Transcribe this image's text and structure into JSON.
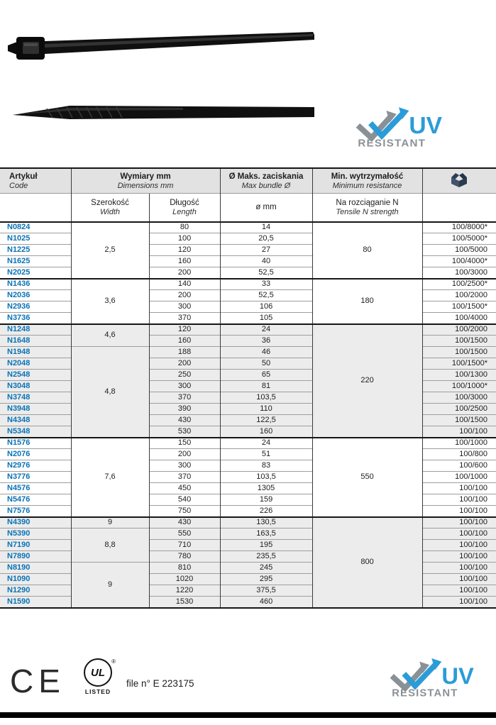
{
  "uv_logo": {
    "uv": "UV",
    "resistant": "RESISTANT",
    "blue": "#2b9cd8",
    "gray": "#8a9196"
  },
  "table": {
    "header": {
      "article_pl": "Artykuł",
      "article_en": "Code",
      "dims_pl": "Wymiary mm",
      "dims_en": "Dimensions mm",
      "bundle_pl": "Ø Maks. zaciskania",
      "bundle_en": "Max bundle Ø",
      "resist_pl": "Min. wytrzymałość",
      "resist_en": "Minimum resistance",
      "width_pl": "Szerokość",
      "width_en": "Width",
      "length_pl": "Długość",
      "length_en": "Length",
      "dia": "ø mm",
      "tensile_pl": "Na rozciąganie N",
      "tensile_en": "Tensile N strength"
    },
    "rows": [
      {
        "code": "N0824",
        "width": "2,5",
        "wspan": 5,
        "len": "80",
        "dia": "14",
        "res": "80",
        "rspan": 5,
        "pack": "100/8000*",
        "shade": false
      },
      {
        "code": "N1025",
        "len": "100",
        "dia": "20,5",
        "pack": "100/5000*",
        "shade": false
      },
      {
        "code": "N1225",
        "len": "120",
        "dia": "27",
        "pack": "100/5000",
        "shade": false
      },
      {
        "code": "N1625",
        "len": "160",
        "dia": "40",
        "pack": "100/4000*",
        "shade": false
      },
      {
        "code": "N2025",
        "len": "200",
        "dia": "52,5",
        "pack": "100/3000",
        "shade": false
      },
      {
        "code": "N1436",
        "grp": true,
        "width": "3,6",
        "wspan": 4,
        "len": "140",
        "dia": "33",
        "res": "180",
        "rspan": 4,
        "pack": "100/2500*",
        "shade": false
      },
      {
        "code": "N2036",
        "len": "200",
        "dia": "52,5",
        "pack": "100/2000",
        "shade": false
      },
      {
        "code": "N2936",
        "len": "300",
        "dia": "106",
        "pack": "100/1500*",
        "shade": false
      },
      {
        "code": "N3736",
        "len": "370",
        "dia": "105",
        "pack": "100/4000",
        "shade": false
      },
      {
        "code": "N1248",
        "grp": true,
        "width": "4,6",
        "wspan": 2,
        "len": "120",
        "dia": "24",
        "res": "220",
        "rspan": 10,
        "pack": "100/2000",
        "shade": true
      },
      {
        "code": "N1648",
        "len": "160",
        "dia": "36",
        "pack": "100/1500",
        "shade": true
      },
      {
        "code": "N1948",
        "width": "4,8",
        "wspan": 8,
        "len": "188",
        "dia": "46",
        "pack": "100/1500",
        "shade": true
      },
      {
        "code": "N2048",
        "len": "200",
        "dia": "50",
        "pack": "100/1500*",
        "shade": true
      },
      {
        "code": "N2548",
        "len": "250",
        "dia": "65",
        "pack": "100/1300",
        "shade": true
      },
      {
        "code": "N3048",
        "len": "300",
        "dia": "81",
        "pack": "100/1000*",
        "shade": true
      },
      {
        "code": "N3748",
        "len": "370",
        "dia": "103,5",
        "pack": "100/3000",
        "shade": true
      },
      {
        "code": "N3948",
        "len": "390",
        "dia": "110",
        "pack": "100/2500",
        "shade": true
      },
      {
        "code": "N4348",
        "len": "430",
        "dia": "122,5",
        "pack": "100/1500",
        "shade": true
      },
      {
        "code": "N5348",
        "len": "530",
        "dia": "160",
        "pack": "100/100",
        "shade": true
      },
      {
        "code": "N1576",
        "grp": true,
        "width": "7,6",
        "wspan": 7,
        "len": "150",
        "dia": "24",
        "res": "550",
        "rspan": 7,
        "pack": "100/1000",
        "shade": false
      },
      {
        "code": "N2076",
        "len": "200",
        "dia": "51",
        "pack": "100/800",
        "shade": false
      },
      {
        "code": "N2976",
        "len": "300",
        "dia": "83",
        "pack": "100/600",
        "shade": false
      },
      {
        "code": "N3776",
        "len": "370",
        "dia": "103,5",
        "pack": "100/1000",
        "shade": false
      },
      {
        "code": "N4576",
        "len": "450",
        "dia": "1305",
        "pack": "100/100",
        "shade": false
      },
      {
        "code": "N5476",
        "len": "540",
        "dia": "159",
        "pack": "100/100",
        "shade": false
      },
      {
        "code": "N7576",
        "len": "750",
        "dia": "226",
        "pack": "100/100",
        "shade": false
      },
      {
        "code": "N4390",
        "grp": true,
        "width": "9",
        "wspan": 1,
        "len": "430",
        "dia": "130,5",
        "res": "800",
        "rspan": 8,
        "pack": "100/100",
        "shade": true
      },
      {
        "code": "N5390",
        "width": "8,8",
        "wspan": 3,
        "len": "550",
        "dia": "163,5",
        "pack": "100/100",
        "shade": true
      },
      {
        "code": "N7190",
        "len": "710",
        "dia": "195",
        "pack": "100/100",
        "shade": true
      },
      {
        "code": "N7890",
        "len": "780",
        "dia": "235,5",
        "pack": "100/100",
        "shade": true
      },
      {
        "code": "N8190",
        "width": "9",
        "wspan": 4,
        "len": "810",
        "dia": "245",
        "pack": "100/100",
        "shade": true
      },
      {
        "code": "N1090",
        "len": "1020",
        "dia": "295",
        "pack": "100/100",
        "shade": true
      },
      {
        "code": "N1290",
        "len": "1220",
        "dia": "375,5",
        "pack": "100/100",
        "shade": true
      },
      {
        "code": "N1590",
        "len": "1530",
        "dia": "460",
        "pack": "100/100",
        "shade": true
      }
    ]
  },
  "footer": {
    "ce": "CE",
    "ul_text": "UL",
    "ul_reg": "®",
    "ul_listed": "LISTED",
    "file_text": "file n° E 223175"
  }
}
